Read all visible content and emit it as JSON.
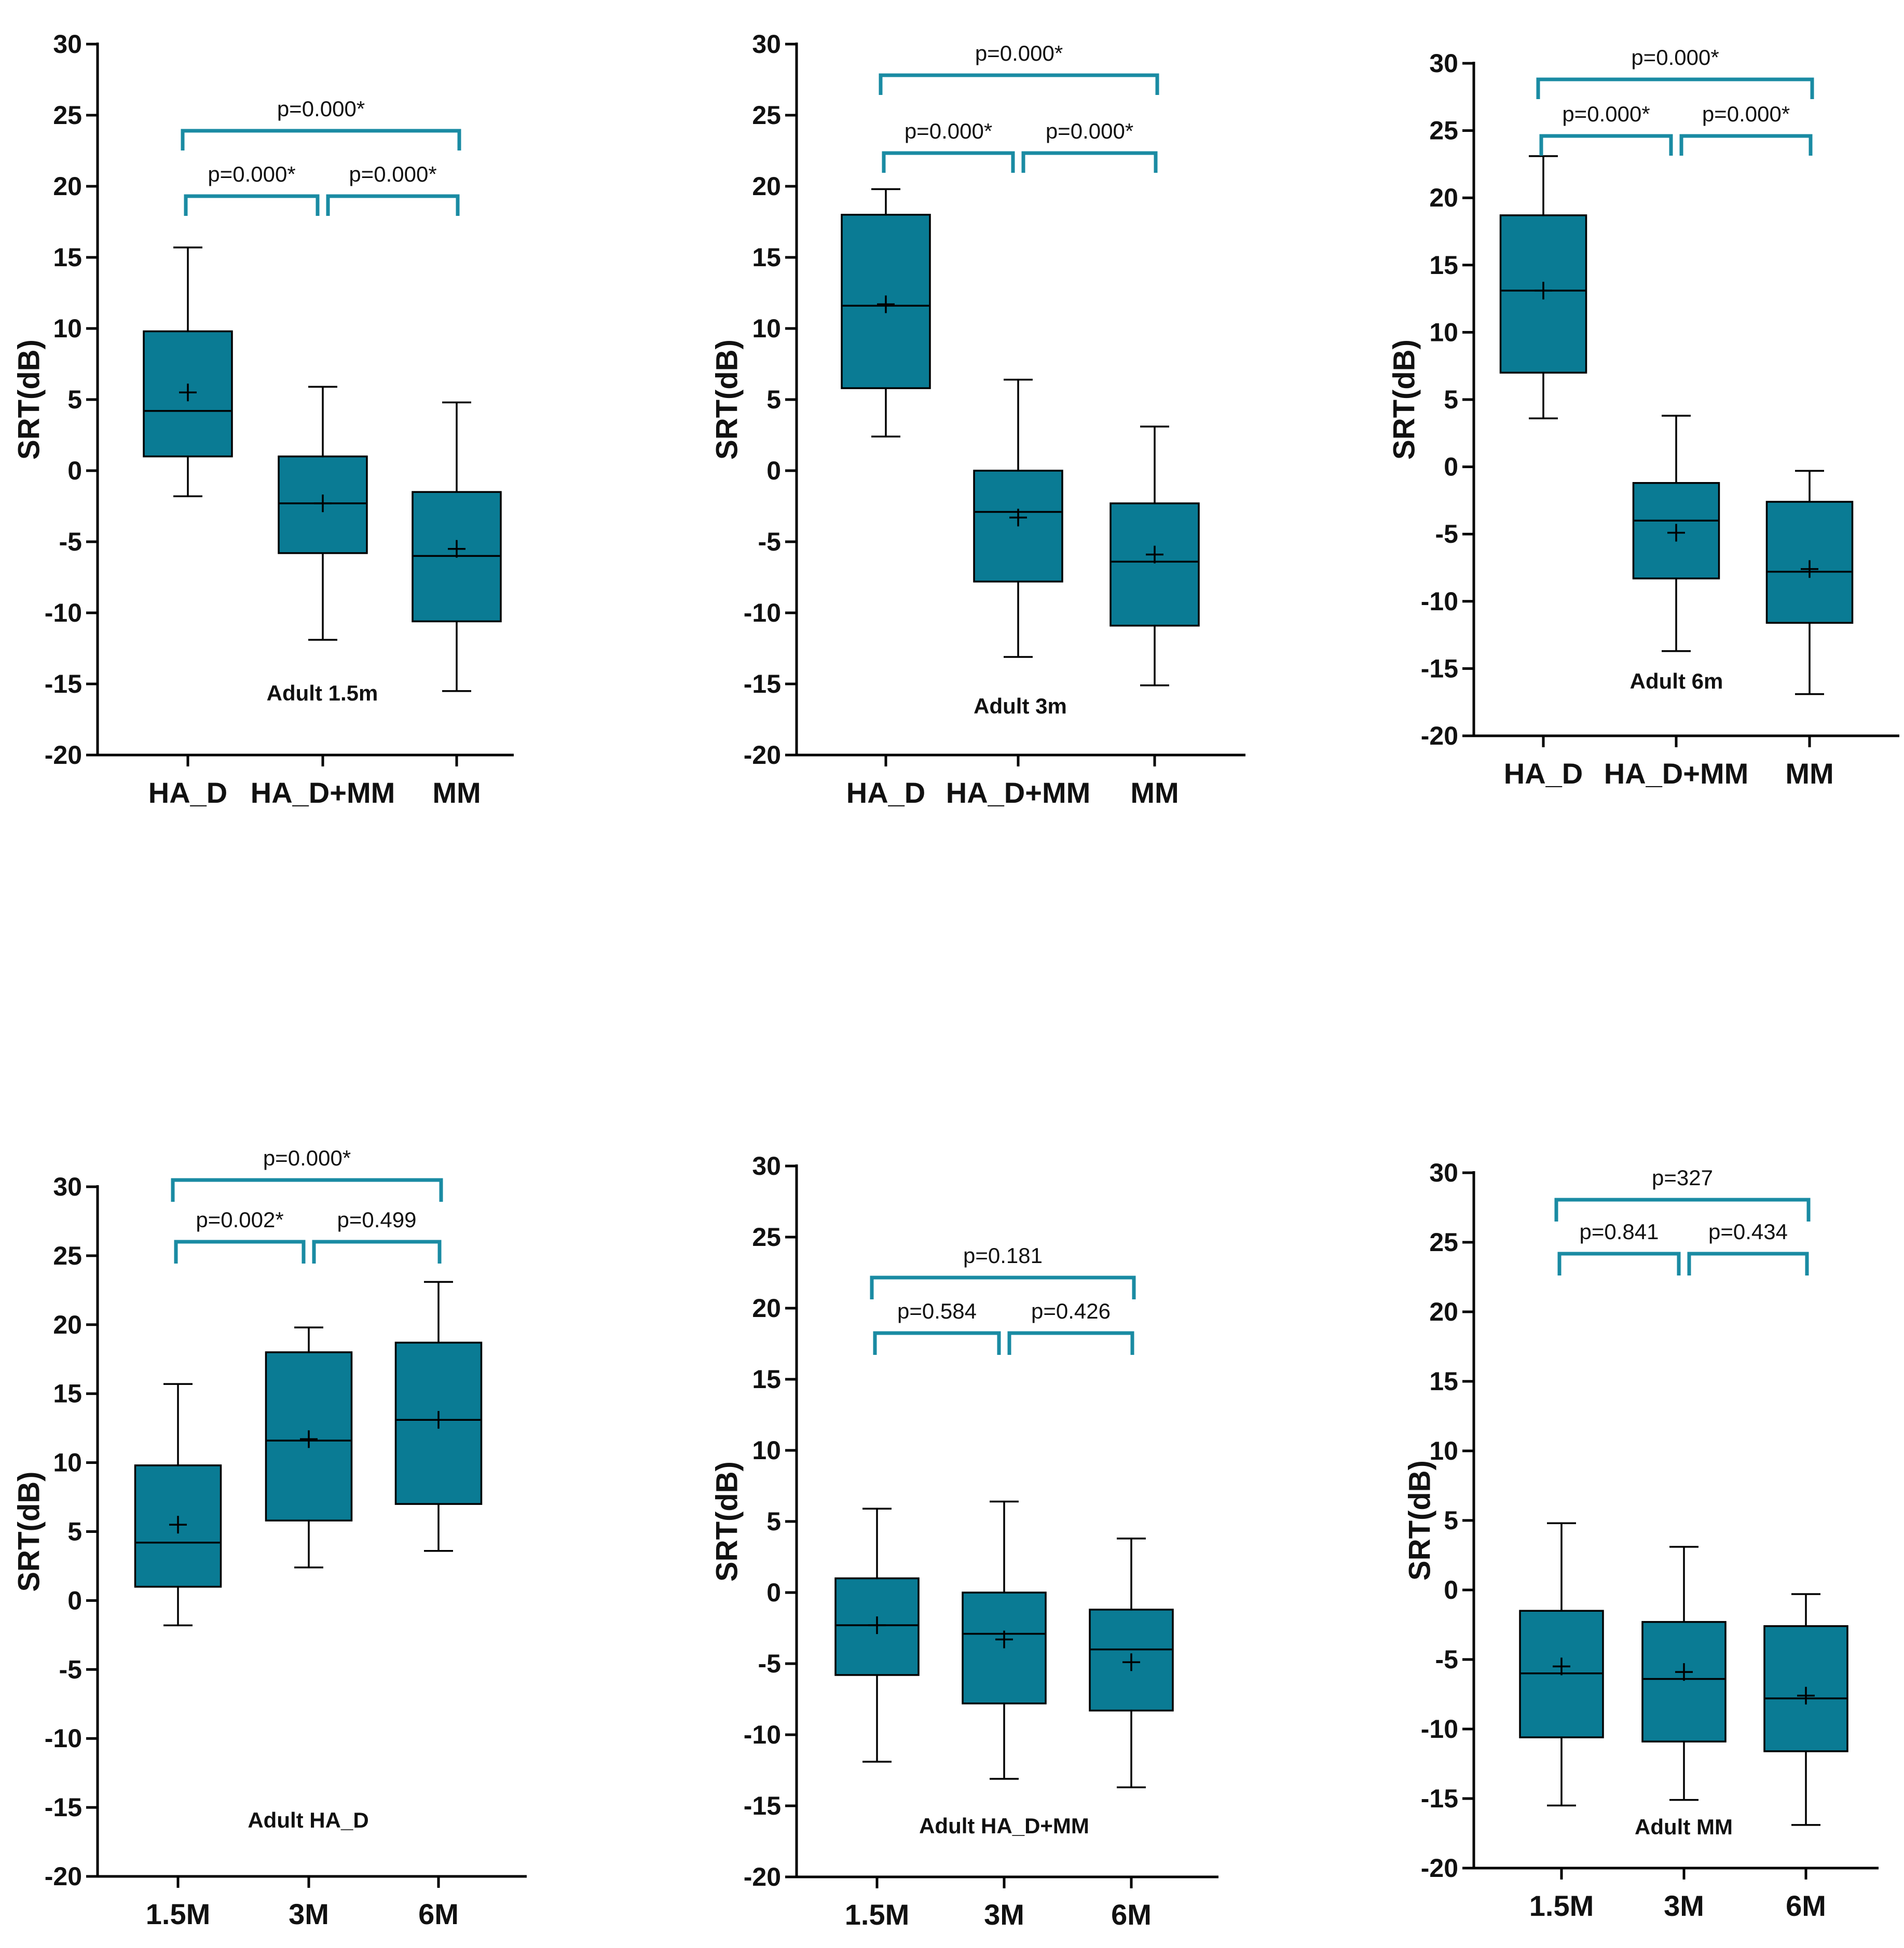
{
  "colors": {
    "box_fill": "#0a7b94",
    "bracket": "#1a8ba3",
    "axis": "#000000",
    "text": "#111111",
    "background": "#ffffff"
  },
  "chart_data": [
    {
      "type": "box",
      "title": "Adult 1.5m",
      "ylabel": "SRT(dB)",
      "ylim": [
        -20,
        30
      ],
      "yticks": [
        "30",
        "25",
        "20",
        "15",
        "10",
        "5",
        "0",
        "-5",
        "-10",
        "-15",
        "-20"
      ],
      "categories": [
        "HA_D",
        "HA_D+MM",
        "MM"
      ],
      "boxes": [
        {
          "min": -1.8,
          "q1": 1.0,
          "median": 4.2,
          "q3": 9.8,
          "max": 15.7,
          "mean": 5.5
        },
        {
          "min": -11.9,
          "q1": -5.8,
          "median": -2.3,
          "q3": 1.0,
          "max": 5.9,
          "mean": -2.3
        },
        {
          "min": -15.5,
          "q1": -10.6,
          "median": -6.0,
          "q3": -1.5,
          "max": 4.8,
          "mean": -5.5
        }
      ],
      "comparisons": [
        {
          "label": "p=0.000*",
          "from": 0,
          "to": 2
        },
        {
          "label": "p=0.000*",
          "from": 0,
          "to": 1
        },
        {
          "label": "p=0.000*",
          "from": 1,
          "to": 2
        }
      ]
    },
    {
      "type": "box",
      "title": "Adult 3m",
      "ylabel": "SRT(dB)",
      "ylim": [
        -20,
        30
      ],
      "yticks": [
        "30",
        "25",
        "20",
        "15",
        "10",
        "5",
        "0",
        "-5",
        "-10",
        "-15",
        "-20"
      ],
      "categories": [
        "HA_D",
        "HA_D+MM",
        "MM"
      ],
      "boxes": [
        {
          "min": 2.4,
          "q1": 5.8,
          "median": 11.6,
          "q3": 18.0,
          "max": 19.8,
          "mean": 11.7
        },
        {
          "min": -13.1,
          "q1": -7.8,
          "median": -2.9,
          "q3": 0.0,
          "max": 6.4,
          "mean": -3.3
        },
        {
          "min": -15.1,
          "q1": -10.9,
          "median": -6.4,
          "q3": -2.3,
          "max": 3.1,
          "mean": -5.9
        }
      ],
      "comparisons": [
        {
          "label": "p=0.000*",
          "from": 0,
          "to": 2
        },
        {
          "label": "p=0.000*",
          "from": 0,
          "to": 1
        },
        {
          "label": "p=0.000*",
          "from": 1,
          "to": 2
        }
      ]
    },
    {
      "type": "box",
      "title": "Adult 6m",
      "ylabel": "SRT(dB)",
      "ylim": [
        -20,
        30
      ],
      "yticks": [
        "30",
        "25",
        "20",
        "15",
        "10",
        "5",
        "0",
        "-5",
        "-10",
        "-15",
        "-20"
      ],
      "categories": [
        "HA_D",
        "HA_D+MM",
        "MM"
      ],
      "boxes": [
        {
          "min": 3.6,
          "q1": 7.0,
          "median": 13.1,
          "q3": 18.7,
          "max": 23.1,
          "mean": 13.1
        },
        {
          "min": -13.7,
          "q1": -8.3,
          "median": -4.0,
          "q3": -1.2,
          "max": 3.8,
          "mean": -4.9
        },
        {
          "min": -16.9,
          "q1": -11.6,
          "median": -7.8,
          "q3": -2.6,
          "max": -0.3,
          "mean": -7.6
        }
      ],
      "comparisons": [
        {
          "label": "p=0.000*",
          "from": 0,
          "to": 2
        },
        {
          "label": "p=0.000*",
          "from": 0,
          "to": 1
        },
        {
          "label": "p=0.000*",
          "from": 1,
          "to": 2
        }
      ]
    },
    {
      "type": "box",
      "title": "Adult HA_D",
      "ylabel": "SRT(dB)",
      "ylim": [
        -20,
        30
      ],
      "yticks": [
        "30",
        "25",
        "20",
        "15",
        "10",
        "5",
        "0",
        "-5",
        "-10",
        "-15",
        "-20"
      ],
      "categories": [
        "1.5M",
        "3M",
        "6M"
      ],
      "boxes": [
        {
          "min": -1.8,
          "q1": 1.0,
          "median": 4.2,
          "q3": 9.8,
          "max": 15.7,
          "mean": 5.5
        },
        {
          "min": 2.4,
          "q1": 5.8,
          "median": 11.6,
          "q3": 18.0,
          "max": 19.8,
          "mean": 11.7
        },
        {
          "min": 3.6,
          "q1": 7.0,
          "median": 13.1,
          "q3": 18.7,
          "max": 23.1,
          "mean": 13.1
        }
      ],
      "comparisons": [
        {
          "label": "p=0.000*",
          "from": 0,
          "to": 2
        },
        {
          "label": "p=0.002*",
          "from": 0,
          "to": 1
        },
        {
          "label": "p=0.499",
          "from": 1,
          "to": 2
        }
      ]
    },
    {
      "type": "box",
      "title": "Adult  HA_D+MM",
      "ylabel": "SRT(dB)",
      "ylim": [
        -20,
        30
      ],
      "yticks": [
        "30",
        "25",
        "20",
        "15",
        "10",
        "5",
        "0",
        "-5",
        "-10",
        "-15",
        "-20"
      ],
      "categories": [
        "1.5M",
        "3M",
        "6M"
      ],
      "boxes": [
        {
          "min": -11.9,
          "q1": -5.8,
          "median": -2.3,
          "q3": 1.0,
          "max": 5.9,
          "mean": -2.3
        },
        {
          "min": -13.1,
          "q1": -7.8,
          "median": -2.9,
          "q3": 0.0,
          "max": 6.4,
          "mean": -3.3
        },
        {
          "min": -13.7,
          "q1": -8.3,
          "median": -4.0,
          "q3": -1.2,
          "max": 3.8,
          "mean": -4.9
        }
      ],
      "comparisons": [
        {
          "label": "p=0.181",
          "from": 0,
          "to": 2
        },
        {
          "label": "p=0.584",
          "from": 0,
          "to": 1
        },
        {
          "label": "p=0.426",
          "from": 1,
          "to": 2
        }
      ]
    },
    {
      "type": "box",
      "title": "Adult MM",
      "ylabel": "SRT(dB)",
      "ylim": [
        -20,
        30
      ],
      "yticks": [
        "30",
        "25",
        "20",
        "15",
        "10",
        "5",
        "0",
        "-5",
        "-10",
        "-15",
        "-20"
      ],
      "categories": [
        "1.5M",
        "3M",
        "6M"
      ],
      "boxes": [
        {
          "min": -15.5,
          "q1": -10.6,
          "median": -6.0,
          "q3": -1.5,
          "max": 4.8,
          "mean": -5.5
        },
        {
          "min": -15.1,
          "q1": -10.9,
          "median": -6.4,
          "q3": -2.3,
          "max": 3.1,
          "mean": -5.9
        },
        {
          "min": -16.9,
          "q1": -11.6,
          "median": -7.8,
          "q3": -2.6,
          "max": -0.3,
          "mean": -7.6
        }
      ],
      "comparisons": [
        {
          "label": "p=327",
          "from": 0,
          "to": 2
        },
        {
          "label": "p=0.841",
          "from": 0,
          "to": 1
        },
        {
          "label": "p=0.434",
          "from": 1,
          "to": 2
        }
      ]
    }
  ]
}
